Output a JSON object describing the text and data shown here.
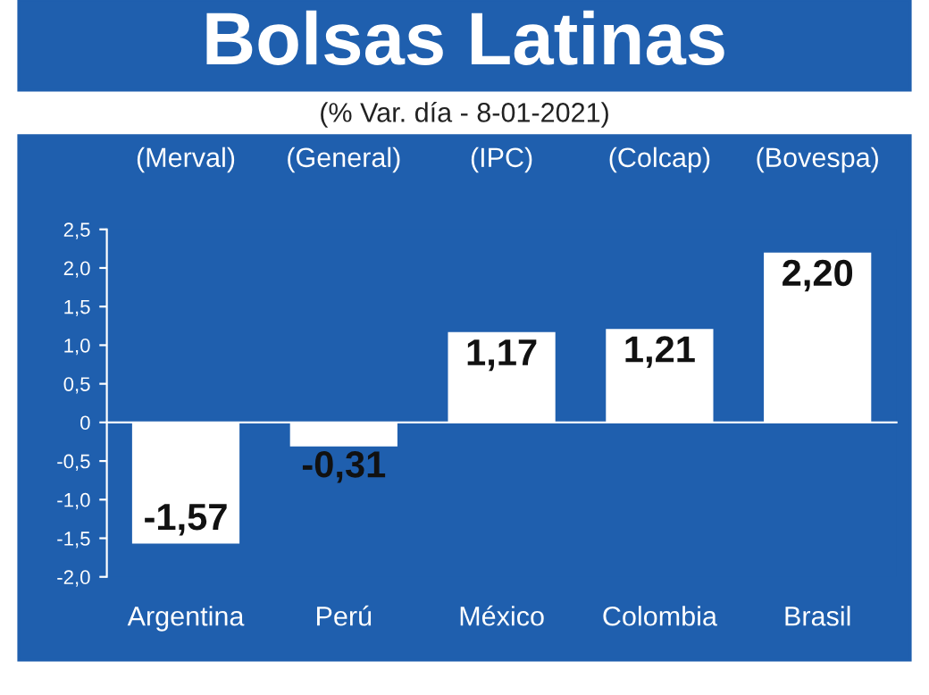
{
  "chart_data": {
    "type": "bar",
    "title": "Bolsas Latinas",
    "subtitle": "(% Var. día - 8-01-2021)",
    "categories": [
      "Argentina",
      "Perú",
      "México",
      "Colombia",
      "Brasil"
    ],
    "annotations": [
      "(Merval)",
      "(General)",
      "(IPC)",
      "(Colcap)",
      "(Bovespa)"
    ],
    "values": [
      -1.57,
      -0.31,
      1.17,
      1.21,
      2.2
    ],
    "value_labels": [
      "-1,57",
      "-0,31",
      "1,17",
      "1,21",
      "2,20"
    ],
    "color": "#ffffff",
    "ylim": [
      -2.0,
      2.5
    ],
    "yticks": [
      {
        "value": -2.0,
        "label": "-2,0"
      },
      {
        "value": -1.5,
        "label": "-1,5"
      },
      {
        "value": -1.0,
        "label": "-1,0"
      },
      {
        "value": -0.5,
        "label": "-0,5"
      },
      0,
      {
        "value": 0.5,
        "label": "0,5"
      },
      {
        "value": 1.0,
        "label": "1,0"
      },
      {
        "value": 1.5,
        "label": "1,5"
      },
      {
        "value": 2.0,
        "label": "2,0"
      },
      {
        "value": 2.5,
        "label": "2,5"
      }
    ]
  }
}
